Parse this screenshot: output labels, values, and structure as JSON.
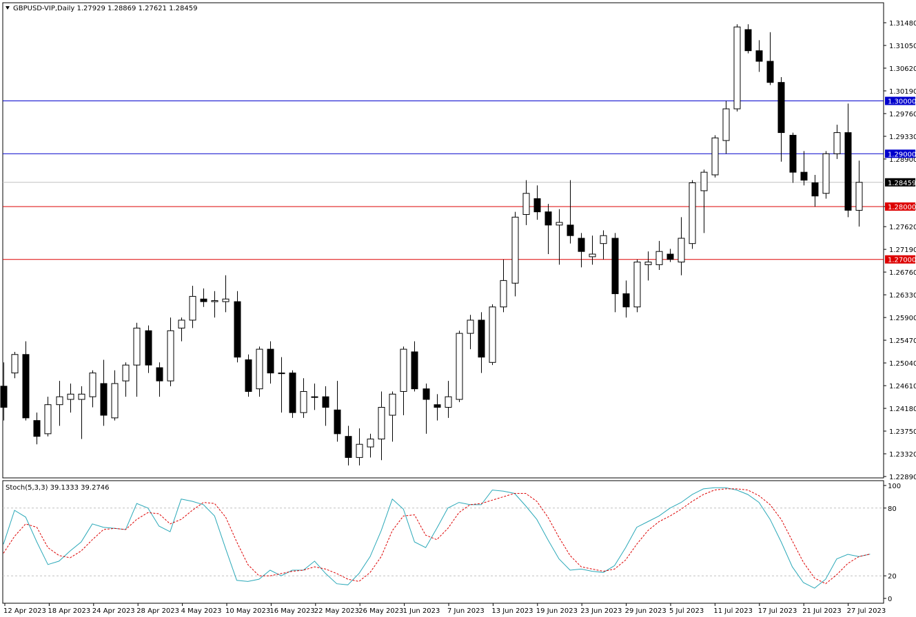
{
  "main_pane": {
    "symbol": "GBPUSD-VIP",
    "timeframe": "Daily",
    "header_values": [
      "1.27929",
      "1.28869",
      "1.27621",
      "1.28459"
    ],
    "header_text": "GBPUSD-VIP,Daily  1.27929 1.28869 1.27621 1.28459"
  },
  "stoch_pane": {
    "header_text": "Stoch(5,3,3) 39.1333 39.2746",
    "levels": [
      "100",
      "80",
      "20",
      "0"
    ]
  },
  "colors": {
    "background": "#ffffff",
    "candle_up": "#ffffff",
    "candle_down": "#000000",
    "hline_blue": "#0000cc",
    "hline_red": "#dd0000",
    "stoch_main": "#2aa8b8",
    "stoch_signal": "#dd0000",
    "current_price_tag": "#000000"
  },
  "chart_data": [
    {
      "type": "candlestick",
      "title": "GBPUSD-VIP,Daily",
      "ylim": [
        1.2289,
        1.3148
      ],
      "y_ticks": [
        "1.31480",
        "1.31050",
        "1.30620",
        "1.30190",
        "1.29760",
        "1.29330",
        "1.28900",
        "1.28459",
        "1.28000",
        "1.27620",
        "1.27190",
        "1.26760",
        "1.26330",
        "1.25900",
        "1.25470",
        "1.25040",
        "1.24610",
        "1.24180",
        "1.23750",
        "1.23320",
        "1.22890"
      ],
      "x_ticks": [
        "12 Apr 2023",
        "18 Apr 2023",
        "24 Apr 2023",
        "28 Apr 2023",
        "4 May 2023",
        "10 May 2023",
        "16 May 2023",
        "22 May 2023",
        "26 May 2023",
        "1 Jun 2023",
        "7 Jun 2023",
        "13 Jun 2023",
        "19 Jun 2023",
        "23 Jun 2023",
        "29 Jun 2023",
        "5 Jul 2023",
        "11 Jul 2023",
        "17 Jul 2023",
        "21 Jul 2023",
        "27 Jul 2023"
      ],
      "horizontal_lines": [
        {
          "price": 1.3,
          "label": "1.30000",
          "color": "#0000cc"
        },
        {
          "price": 1.29,
          "label": "1.29000",
          "color": "#0000cc"
        },
        {
          "price": 1.28,
          "label": "1.28000",
          "color": "#dd0000"
        },
        {
          "price": 1.27,
          "label": "1.27000",
          "color": "#dd0000"
        }
      ],
      "current_price": {
        "price": 1.28459,
        "label": "1.28459"
      },
      "candles": [
        {
          "o": 1.246,
          "h": 1.2505,
          "l": 1.2395,
          "c": 1.242
        },
        {
          "o": 1.2485,
          "h": 1.2525,
          "l": 1.2475,
          "c": 1.252
        },
        {
          "o": 1.252,
          "h": 1.2545,
          "l": 1.2395,
          "c": 1.24
        },
        {
          "o": 1.2395,
          "h": 1.241,
          "l": 1.235,
          "c": 1.2365
        },
        {
          "o": 1.237,
          "h": 1.244,
          "l": 1.2365,
          "c": 1.2425
        },
        {
          "o": 1.2425,
          "h": 1.247,
          "l": 1.2385,
          "c": 1.244
        },
        {
          "o": 1.2435,
          "h": 1.2465,
          "l": 1.241,
          "c": 1.2445
        },
        {
          "o": 1.2435,
          "h": 1.246,
          "l": 1.236,
          "c": 1.2445
        },
        {
          "o": 1.244,
          "h": 1.249,
          "l": 1.242,
          "c": 1.2485
        },
        {
          "o": 1.2465,
          "h": 1.251,
          "l": 1.2385,
          "c": 1.2405
        },
        {
          "o": 1.24,
          "h": 1.249,
          "l": 1.2395,
          "c": 1.2465
        },
        {
          "o": 1.247,
          "h": 1.2505,
          "l": 1.244,
          "c": 1.25
        },
        {
          "o": 1.25,
          "h": 1.258,
          "l": 1.244,
          "c": 1.257
        },
        {
          "o": 1.2565,
          "h": 1.2575,
          "l": 1.2485,
          "c": 1.25
        },
        {
          "o": 1.2495,
          "h": 1.2505,
          "l": 1.244,
          "c": 1.247
        },
        {
          "o": 1.247,
          "h": 1.259,
          "l": 1.246,
          "c": 1.2565
        },
        {
          "o": 1.257,
          "h": 1.259,
          "l": 1.2545,
          "c": 1.2585
        },
        {
          "o": 1.2585,
          "h": 1.265,
          "l": 1.257,
          "c": 1.263
        },
        {
          "o": 1.2625,
          "h": 1.2645,
          "l": 1.261,
          "c": 1.262
        },
        {
          "o": 1.262,
          "h": 1.264,
          "l": 1.259,
          "c": 1.2622
        },
        {
          "o": 1.262,
          "h": 1.267,
          "l": 1.26,
          "c": 1.2625
        },
        {
          "o": 1.262,
          "h": 1.264,
          "l": 1.2505,
          "c": 1.2515
        },
        {
          "o": 1.251,
          "h": 1.252,
          "l": 1.244,
          "c": 1.245
        },
        {
          "o": 1.2455,
          "h": 1.2535,
          "l": 1.244,
          "c": 1.253
        },
        {
          "o": 1.253,
          "h": 1.2545,
          "l": 1.2465,
          "c": 1.2485
        },
        {
          "o": 1.2485,
          "h": 1.2515,
          "l": 1.241,
          "c": 1.2485
        },
        {
          "o": 1.2485,
          "h": 1.249,
          "l": 1.24,
          "c": 1.241
        },
        {
          "o": 1.241,
          "h": 1.2475,
          "l": 1.24,
          "c": 1.245
        },
        {
          "o": 1.244,
          "h": 1.2465,
          "l": 1.2415,
          "c": 1.244
        },
        {
          "o": 1.244,
          "h": 1.246,
          "l": 1.2385,
          "c": 1.242
        },
        {
          "o": 1.2415,
          "h": 1.247,
          "l": 1.2355,
          "c": 1.237
        },
        {
          "o": 1.2365,
          "h": 1.2385,
          "l": 1.231,
          "c": 1.2325
        },
        {
          "o": 1.2325,
          "h": 1.238,
          "l": 1.231,
          "c": 1.235
        },
        {
          "o": 1.2345,
          "h": 1.237,
          "l": 1.2325,
          "c": 1.236
        },
        {
          "o": 1.236,
          "h": 1.245,
          "l": 1.232,
          "c": 1.242
        },
        {
          "o": 1.2405,
          "h": 1.245,
          "l": 1.2355,
          "c": 1.2445
        },
        {
          "o": 1.245,
          "h": 1.2535,
          "l": 1.2405,
          "c": 1.253
        },
        {
          "o": 1.2525,
          "h": 1.2545,
          "l": 1.245,
          "c": 1.2455
        },
        {
          "o": 1.2455,
          "h": 1.2465,
          "l": 1.237,
          "c": 1.2435
        },
        {
          "o": 1.2425,
          "h": 1.2445,
          "l": 1.2395,
          "c": 1.242
        },
        {
          "o": 1.242,
          "h": 1.247,
          "l": 1.24,
          "c": 1.244
        },
        {
          "o": 1.2435,
          "h": 1.2565,
          "l": 1.243,
          "c": 1.256
        },
        {
          "o": 1.256,
          "h": 1.2595,
          "l": 1.253,
          "c": 1.2585
        },
        {
          "o": 1.2585,
          "h": 1.26,
          "l": 1.2485,
          "c": 1.2515
        },
        {
          "o": 1.2505,
          "h": 1.2615,
          "l": 1.25,
          "c": 1.261
        },
        {
          "o": 1.261,
          "h": 1.27,
          "l": 1.26,
          "c": 1.266
        },
        {
          "o": 1.2655,
          "h": 1.279,
          "l": 1.263,
          "c": 1.278
        },
        {
          "o": 1.2785,
          "h": 1.285,
          "l": 1.2765,
          "c": 1.2825
        },
        {
          "o": 1.2815,
          "h": 1.284,
          "l": 1.2775,
          "c": 1.279
        },
        {
          "o": 1.279,
          "h": 1.2805,
          "l": 1.271,
          "c": 1.2765
        },
        {
          "o": 1.2765,
          "h": 1.2795,
          "l": 1.269,
          "c": 1.277
        },
        {
          "o": 1.2765,
          "h": 1.285,
          "l": 1.273,
          "c": 1.2745
        },
        {
          "o": 1.274,
          "h": 1.275,
          "l": 1.2685,
          "c": 1.2715
        },
        {
          "o": 1.2705,
          "h": 1.2745,
          "l": 1.269,
          "c": 1.271
        },
        {
          "o": 1.273,
          "h": 1.2755,
          "l": 1.27,
          "c": 1.2745
        },
        {
          "o": 1.274,
          "h": 1.275,
          "l": 1.26,
          "c": 1.2635
        },
        {
          "o": 1.2635,
          "h": 1.266,
          "l": 1.259,
          "c": 1.261
        },
        {
          "o": 1.261,
          "h": 1.27,
          "l": 1.26,
          "c": 1.2695
        },
        {
          "o": 1.269,
          "h": 1.2715,
          "l": 1.266,
          "c": 1.2695
        },
        {
          "o": 1.269,
          "h": 1.2735,
          "l": 1.268,
          "c": 1.2715
        },
        {
          "o": 1.271,
          "h": 1.272,
          "l": 1.2695,
          "c": 1.27
        },
        {
          "o": 1.2695,
          "h": 1.278,
          "l": 1.267,
          "c": 1.274
        },
        {
          "o": 1.273,
          "h": 1.285,
          "l": 1.272,
          "c": 1.2845
        },
        {
          "o": 1.283,
          "h": 1.287,
          "l": 1.275,
          "c": 1.2865
        },
        {
          "o": 1.286,
          "h": 1.2935,
          "l": 1.2855,
          "c": 1.293
        },
        {
          "o": 1.2925,
          "h": 1.3,
          "l": 1.29,
          "c": 1.2985
        },
        {
          "o": 1.2985,
          "h": 1.3145,
          "l": 1.298,
          "c": 1.314
        },
        {
          "o": 1.3135,
          "h": 1.3145,
          "l": 1.309,
          "c": 1.3095
        },
        {
          "o": 1.3095,
          "h": 1.3115,
          "l": 1.3055,
          "c": 1.3075
        },
        {
          "o": 1.3075,
          "h": 1.313,
          "l": 1.303,
          "c": 1.3035
        },
        {
          "o": 1.3035,
          "h": 1.3045,
          "l": 1.2885,
          "c": 1.294
        },
        {
          "o": 1.2935,
          "h": 1.294,
          "l": 1.2845,
          "c": 1.2865
        },
        {
          "o": 1.2865,
          "h": 1.2905,
          "l": 1.284,
          "c": 1.285
        },
        {
          "o": 1.2845,
          "h": 1.286,
          "l": 1.28,
          "c": 1.282
        },
        {
          "o": 1.2825,
          "h": 1.2905,
          "l": 1.2815,
          "c": 1.29
        },
        {
          "o": 1.29,
          "h": 1.2955,
          "l": 1.289,
          "c": 1.294
        },
        {
          "o": 1.294,
          "h": 1.2995,
          "l": 1.278,
          "c": 1.2793
        },
        {
          "o": 1.27929,
          "h": 1.28869,
          "l": 1.27621,
          "c": 1.28459
        }
      ]
    },
    {
      "type": "line",
      "title": "Stoch(5,3,3)",
      "ylim": [
        0,
        100
      ],
      "levels": [
        20,
        80
      ],
      "series": [
        {
          "name": "39.1333",
          "values": [
            48,
            78,
            72,
            50,
            30,
            33,
            42,
            50,
            66,
            63,
            62,
            61,
            84,
            80,
            64,
            59,
            88,
            86,
            83,
            73,
            44,
            16,
            15,
            17,
            25,
            20,
            25,
            25,
            33,
            22,
            13,
            12,
            22,
            37,
            60,
            88,
            79,
            50,
            45,
            62,
            80,
            85,
            83,
            83,
            96,
            95,
            93,
            82,
            70,
            52,
            35,
            25,
            26,
            24,
            23,
            29,
            45,
            63,
            68,
            73,
            80,
            85,
            92,
            97,
            98,
            98,
            96,
            92,
            85,
            70,
            50,
            28,
            14,
            9,
            17,
            35,
            39,
            37,
            39.1333
          ]
        },
        {
          "name": "39.2746",
          "values": [
            40,
            55,
            66,
            63,
            45,
            38,
            36,
            42,
            52,
            61,
            62,
            61,
            70,
            76,
            75,
            66,
            70,
            78,
            85,
            84,
            72,
            50,
            30,
            20,
            20,
            22,
            24,
            25,
            28,
            26,
            22,
            17,
            15,
            23,
            37,
            60,
            73,
            74,
            56,
            52,
            62,
            76,
            83,
            84,
            87,
            90,
            93,
            93,
            86,
            72,
            54,
            38,
            28,
            26,
            24,
            26,
            34,
            48,
            60,
            68,
            73,
            79,
            86,
            92,
            96,
            97,
            97,
            96,
            91,
            83,
            70,
            51,
            32,
            18,
            13,
            21,
            31,
            37,
            39.2746
          ]
        }
      ]
    }
  ]
}
